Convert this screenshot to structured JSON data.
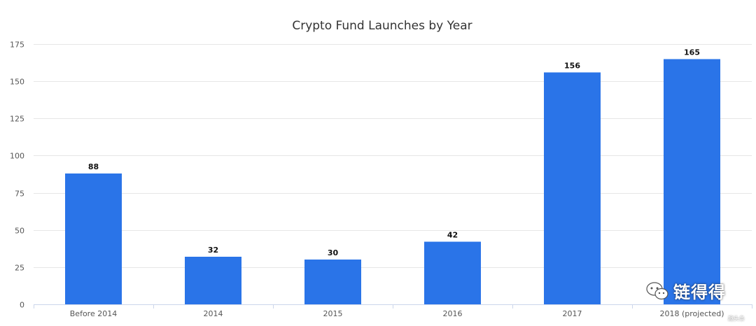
{
  "chart_data": {
    "type": "bar",
    "title": "Crypto Fund Launches by Year",
    "categories": [
      "Before 2014",
      "2014",
      "2015",
      "2016",
      "2017",
      "2018 (projected)"
    ],
    "values": [
      88,
      32,
      30,
      42,
      156,
      165
    ],
    "ylim": [
      0,
      175
    ],
    "yticks": [
      0,
      25,
      50,
      75,
      100,
      125,
      150,
      175
    ],
    "xlabel": "",
    "ylabel": "",
    "grid": true,
    "bar_color": "#2a74e8"
  },
  "watermark": {
    "text": "链得得",
    "small_text": "趣头条"
  }
}
